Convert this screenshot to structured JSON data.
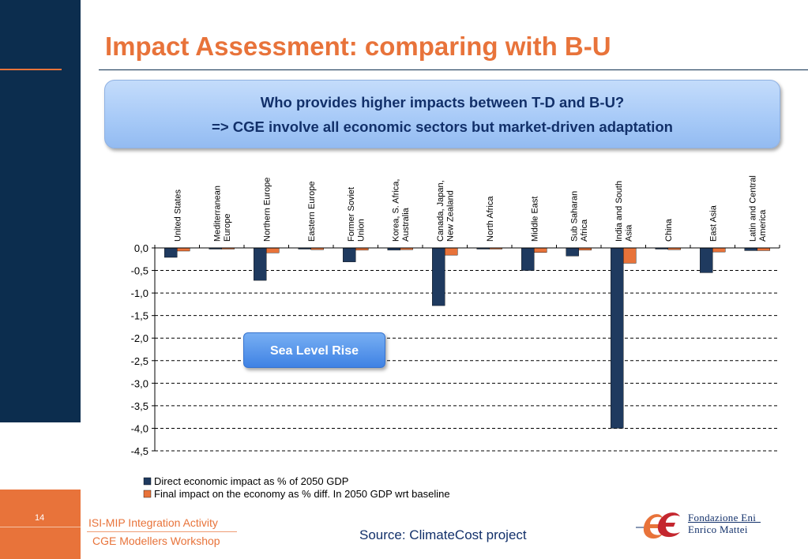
{
  "slide": {
    "title": "Impact Assessment: comparing with B-U",
    "number": "14"
  },
  "callout": {
    "line1": "Who provides higher impacts between T-D and B-U?",
    "line2": "=> CGE involve all economic sectors but market-driven adaptation"
  },
  "annotation": "Sea Level Rise",
  "footer": {
    "line1": "ISI-MIP Integration Activity",
    "line2": "CGE Modellers Workshop",
    "source": "Source: ClimateCost project"
  },
  "logo": {
    "line1": "Fondazione Eni",
    "line2": "Enrico Mattei"
  },
  "colors": {
    "accent": "#e8733a",
    "navy": "#0c2d4e",
    "direct": "#1f3a5f",
    "final": "#e8733a"
  },
  "chart_data": {
    "type": "bar",
    "categories": [
      [
        "United States"
      ],
      [
        "Mediterranean",
        "Europe"
      ],
      [
        "Northern Europe"
      ],
      [
        "Eastern Europe"
      ],
      [
        "Former Soviet",
        "Union"
      ],
      [
        "Korea, S. Africa,",
        "Australia"
      ],
      [
        "Canada, Japan,",
        "New Zealand"
      ],
      [
        "North Africa"
      ],
      [
        "Middle East"
      ],
      [
        "Sub Saharan",
        "Africa"
      ],
      [
        "India and South",
        "Asia"
      ],
      [
        "China"
      ],
      [
        "East Asia"
      ],
      [
        "Latin and Central",
        "America"
      ]
    ],
    "series": [
      {
        "name": "Direct economic impact as % of 2050 GDP",
        "values": [
          -0.21,
          -0.02,
          -0.72,
          -0.02,
          -0.31,
          -0.05,
          -1.28,
          -0.02,
          -0.5,
          -0.18,
          -4.0,
          -0.01,
          -0.55,
          -0.06
        ]
      },
      {
        "name": "Final impact on the economy as % diff. In 2050 GDP wrt baseline",
        "values": [
          -0.07,
          -0.01,
          -0.11,
          -0.04,
          -0.05,
          -0.04,
          -0.16,
          -0.01,
          -0.1,
          -0.05,
          -0.34,
          -0.04,
          -0.09,
          -0.06
        ]
      }
    ],
    "ylim": [
      -4.5,
      0
    ],
    "yticks": [
      "0,0",
      "-0,5",
      "-1,0",
      "-1,5",
      "-2,0",
      "-2,5",
      "-3,0",
      "-3,5",
      "-4,0",
      "-4,5"
    ],
    "grid": true,
    "legend": "bottom-left"
  }
}
